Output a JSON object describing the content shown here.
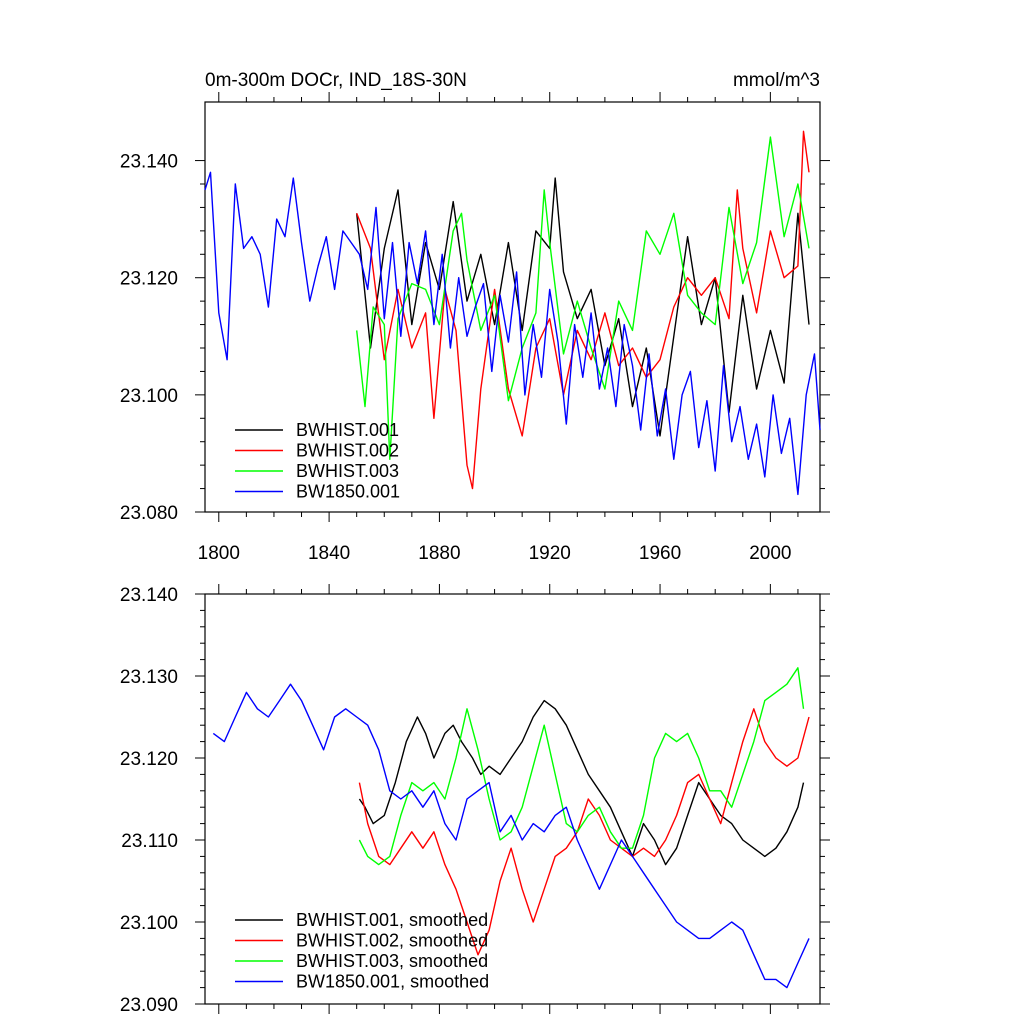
{
  "figure": {
    "title_left": "0m-300m DOCr, IND_18S-30N",
    "title_right": "mmol/m^3"
  },
  "chart_data": [
    {
      "type": "line",
      "title": "0m-300m DOCr, IND_18S-30N",
      "units": "mmol/m^3",
      "xlabel": "",
      "ylabel": "",
      "xlim": [
        1795,
        2018
      ],
      "ylim": [
        23.08,
        23.15
      ],
      "xticks": [
        1800,
        1840,
        1880,
        1920,
        1960,
        2000
      ],
      "xtick_labels": [
        "1800",
        "1840",
        "1880",
        "1920",
        "1960",
        "2000"
      ],
      "yticks": [
        23.08,
        23.1,
        23.12,
        23.14
      ],
      "ytick_labels": [
        "23.080",
        "23.100",
        "23.120",
        "23.140"
      ],
      "legend_position": "bottom-left",
      "series": [
        {
          "name": "BWHIST.001",
          "color": "#000000",
          "x": [
            1850,
            1855,
            1860,
            1865,
            1870,
            1875,
            1880,
            1885,
            1890,
            1895,
            1900,
            1905,
            1910,
            1915,
            1920,
            1922,
            1925,
            1930,
            1935,
            1940,
            1945,
            1950,
            1955,
            1960,
            1965,
            1970,
            1975,
            1980,
            1985,
            1990,
            1995,
            2000,
            2005,
            2010,
            2014
          ],
          "values": [
            23.131,
            23.108,
            23.125,
            23.135,
            23.112,
            23.126,
            23.118,
            23.133,
            23.116,
            23.124,
            23.112,
            23.126,
            23.111,
            23.128,
            23.125,
            23.137,
            23.121,
            23.113,
            23.118,
            23.105,
            23.113,
            23.098,
            23.108,
            23.093,
            23.11,
            23.127,
            23.112,
            23.12,
            23.097,
            23.117,
            23.101,
            23.111,
            23.102,
            23.131,
            23.112
          ]
        },
        {
          "name": "BWHIST.002",
          "color": "#ff0000",
          "x": [
            1850,
            1855,
            1860,
            1865,
            1870,
            1875,
            1878,
            1882,
            1886,
            1890,
            1892,
            1895,
            1900,
            1905,
            1910,
            1915,
            1920,
            1925,
            1930,
            1935,
            1940,
            1945,
            1950,
            1955,
            1960,
            1965,
            1970,
            1975,
            1980,
            1985,
            1988,
            1990,
            1995,
            2000,
            2005,
            2010,
            2012,
            2014
          ],
          "values": [
            23.131,
            23.125,
            23.106,
            23.118,
            23.108,
            23.114,
            23.096,
            23.118,
            23.111,
            23.088,
            23.084,
            23.101,
            23.118,
            23.101,
            23.093,
            23.108,
            23.113,
            23.1,
            23.111,
            23.106,
            23.114,
            23.105,
            23.108,
            23.103,
            23.106,
            23.115,
            23.12,
            23.117,
            23.12,
            23.113,
            23.135,
            23.125,
            23.114,
            23.128,
            23.12,
            23.122,
            23.145,
            23.138
          ]
        },
        {
          "name": "BWHIST.003",
          "color": "#00ff00",
          "x": [
            1850,
            1853,
            1856,
            1860,
            1862,
            1865,
            1870,
            1875,
            1880,
            1885,
            1888,
            1890,
            1895,
            1900,
            1905,
            1910,
            1915,
            1918,
            1920,
            1925,
            1930,
            1935,
            1940,
            1945,
            1950,
            1955,
            1960,
            1965,
            1970,
            1975,
            1980,
            1985,
            1990,
            1995,
            2000,
            2005,
            2010,
            2014
          ],
          "values": [
            23.111,
            23.098,
            23.115,
            23.112,
            23.089,
            23.113,
            23.119,
            23.118,
            23.112,
            23.128,
            23.131,
            23.123,
            23.111,
            23.117,
            23.099,
            23.108,
            23.114,
            23.135,
            23.126,
            23.107,
            23.116,
            23.108,
            23.101,
            23.116,
            23.111,
            23.128,
            23.124,
            23.131,
            23.117,
            23.114,
            23.112,
            23.132,
            23.119,
            23.126,
            23.144,
            23.127,
            23.136,
            23.125
          ]
        },
        {
          "name": "BW1850.001",
          "color": "#0000ff",
          "x": [
            1795,
            1797,
            1800,
            1803,
            1806,
            1809,
            1812,
            1815,
            1818,
            1821,
            1824,
            1827,
            1830,
            1833,
            1836,
            1839,
            1842,
            1845,
            1848,
            1851,
            1854,
            1857,
            1860,
            1863,
            1866,
            1869,
            1872,
            1875,
            1878,
            1881,
            1884,
            1887,
            1890,
            1893,
            1896,
            1899,
            1902,
            1905,
            1908,
            1911,
            1914,
            1917,
            1920,
            1923,
            1926,
            1929,
            1932,
            1935,
            1938,
            1941,
            1944,
            1947,
            1950,
            1953,
            1956,
            1959,
            1962,
            1965,
            1968,
            1971,
            1974,
            1977,
            1980,
            1983,
            1986,
            1989,
            1992,
            1995,
            1998,
            2001,
            2004,
            2007,
            2010,
            2013,
            2016,
            2018
          ],
          "values": [
            23.135,
            23.138,
            23.114,
            23.106,
            23.136,
            23.125,
            23.127,
            23.124,
            23.115,
            23.13,
            23.127,
            23.137,
            23.126,
            23.116,
            23.122,
            23.127,
            23.118,
            23.128,
            23.126,
            23.124,
            23.118,
            23.132,
            23.113,
            23.126,
            23.11,
            23.126,
            23.119,
            23.128,
            23.112,
            23.124,
            23.108,
            23.12,
            23.11,
            23.115,
            23.119,
            23.104,
            23.117,
            23.109,
            23.121,
            23.1,
            23.112,
            23.103,
            23.118,
            23.109,
            23.095,
            23.112,
            23.103,
            23.114,
            23.101,
            23.108,
            23.098,
            23.112,
            23.105,
            23.094,
            23.107,
            23.093,
            23.101,
            23.089,
            23.1,
            23.104,
            23.091,
            23.099,
            23.087,
            23.105,
            23.092,
            23.098,
            23.089,
            23.095,
            23.086,
            23.1,
            23.09,
            23.096,
            23.083,
            23.1,
            23.107,
            23.094
          ]
        }
      ]
    },
    {
      "type": "line",
      "title": "",
      "xlabel": "",
      "ylabel": "",
      "xlim": [
        1795,
        2018
      ],
      "ylim": [
        23.09,
        23.14
      ],
      "xticks": [
        1800,
        1840,
        1880,
        1920,
        1960,
        2000
      ],
      "yticks": [
        23.09,
        23.1,
        23.11,
        23.12,
        23.13,
        23.14
      ],
      "ytick_labels": [
        "23.090",
        "23.100",
        "23.110",
        "23.120",
        "23.130",
        "23.140"
      ],
      "legend_position": "bottom-left",
      "series": [
        {
          "name": "BWHIST.001, smoothed",
          "color": "#000000",
          "x": [
            1851,
            1853,
            1856,
            1860,
            1864,
            1868,
            1872,
            1875,
            1878,
            1882,
            1885,
            1888,
            1892,
            1895,
            1898,
            1902,
            1906,
            1910,
            1914,
            1918,
            1922,
            1926,
            1930,
            1934,
            1938,
            1942,
            1946,
            1950,
            1954,
            1958,
            1962,
            1966,
            1970,
            1974,
            1978,
            1982,
            1986,
            1990,
            1994,
            1998,
            2002,
            2006,
            2010,
            2012
          ],
          "values": [
            23.115,
            23.114,
            23.112,
            23.113,
            23.117,
            23.122,
            23.125,
            23.123,
            23.12,
            23.123,
            23.124,
            23.122,
            23.12,
            23.118,
            23.119,
            23.118,
            23.12,
            23.122,
            23.125,
            23.127,
            23.126,
            23.124,
            23.121,
            23.118,
            23.116,
            23.114,
            23.111,
            23.108,
            23.112,
            23.11,
            23.107,
            23.109,
            23.113,
            23.117,
            23.115,
            23.113,
            23.112,
            23.11,
            23.109,
            23.108,
            23.109,
            23.111,
            23.114,
            23.117
          ]
        },
        {
          "name": "BWHIST.002, smoothed",
          "color": "#ff0000",
          "x": [
            1851,
            1854,
            1858,
            1862,
            1866,
            1870,
            1874,
            1878,
            1882,
            1886,
            1890,
            1894,
            1898,
            1902,
            1906,
            1910,
            1914,
            1918,
            1922,
            1926,
            1930,
            1934,
            1938,
            1942,
            1946,
            1950,
            1954,
            1958,
            1962,
            1966,
            1970,
            1974,
            1978,
            1982,
            1986,
            1990,
            1994,
            1998,
            2002,
            2006,
            2010,
            2014
          ],
          "values": [
            23.117,
            23.112,
            23.108,
            23.107,
            23.109,
            23.111,
            23.109,
            23.111,
            23.107,
            23.104,
            23.1,
            23.096,
            23.099,
            23.105,
            23.109,
            23.104,
            23.1,
            23.104,
            23.108,
            23.109,
            23.111,
            23.115,
            23.113,
            23.11,
            23.109,
            23.108,
            23.109,
            23.108,
            23.11,
            23.113,
            23.117,
            23.118,
            23.115,
            23.112,
            23.117,
            23.122,
            23.126,
            23.122,
            23.12,
            23.119,
            23.12,
            23.125
          ]
        },
        {
          "name": "BWHIST.003, smoothed",
          "color": "#00ff00",
          "x": [
            1851,
            1854,
            1858,
            1862,
            1866,
            1870,
            1874,
            1878,
            1882,
            1886,
            1890,
            1894,
            1898,
            1902,
            1906,
            1910,
            1914,
            1918,
            1922,
            1926,
            1930,
            1934,
            1938,
            1942,
            1946,
            1950,
            1954,
            1958,
            1962,
            1966,
            1970,
            1974,
            1978,
            1982,
            1986,
            1990,
            1994,
            1998,
            2002,
            2006,
            2010,
            2012
          ],
          "values": [
            23.11,
            23.108,
            23.107,
            23.108,
            23.113,
            23.117,
            23.116,
            23.117,
            23.115,
            23.12,
            23.126,
            23.121,
            23.115,
            23.11,
            23.111,
            23.114,
            23.119,
            23.124,
            23.118,
            23.112,
            23.111,
            23.113,
            23.114,
            23.111,
            23.109,
            23.109,
            23.113,
            23.12,
            23.123,
            23.122,
            23.123,
            23.12,
            23.116,
            23.116,
            23.114,
            23.118,
            23.122,
            23.127,
            23.128,
            23.129,
            23.131,
            23.126
          ]
        },
        {
          "name": "BW1850.001, smoothed",
          "color": "#0000ff",
          "x": [
            1798,
            1802,
            1806,
            1810,
            1814,
            1818,
            1822,
            1826,
            1830,
            1834,
            1838,
            1842,
            1846,
            1850,
            1854,
            1858,
            1862,
            1866,
            1870,
            1874,
            1878,
            1882,
            1886,
            1890,
            1894,
            1898,
            1902,
            1906,
            1910,
            1914,
            1918,
            1922,
            1926,
            1930,
            1934,
            1938,
            1942,
            1946,
            1950,
            1954,
            1958,
            1962,
            1966,
            1970,
            1974,
            1978,
            1982,
            1986,
            1990,
            1994,
            1998,
            2002,
            2006,
            2010,
            2014
          ],
          "values": [
            23.123,
            23.122,
            23.125,
            23.128,
            23.126,
            23.125,
            23.127,
            23.129,
            23.127,
            23.124,
            23.121,
            23.125,
            23.126,
            23.125,
            23.124,
            23.121,
            23.116,
            23.115,
            23.116,
            23.114,
            23.116,
            23.112,
            23.11,
            23.115,
            23.116,
            23.117,
            23.111,
            23.113,
            23.11,
            23.112,
            23.111,
            23.113,
            23.114,
            23.11,
            23.107,
            23.104,
            23.107,
            23.11,
            23.108,
            23.106,
            23.104,
            23.102,
            23.1,
            23.099,
            23.098,
            23.098,
            23.099,
            23.1,
            23.099,
            23.096,
            23.093,
            23.093,
            23.092,
            23.095,
            23.098
          ]
        }
      ]
    }
  ]
}
